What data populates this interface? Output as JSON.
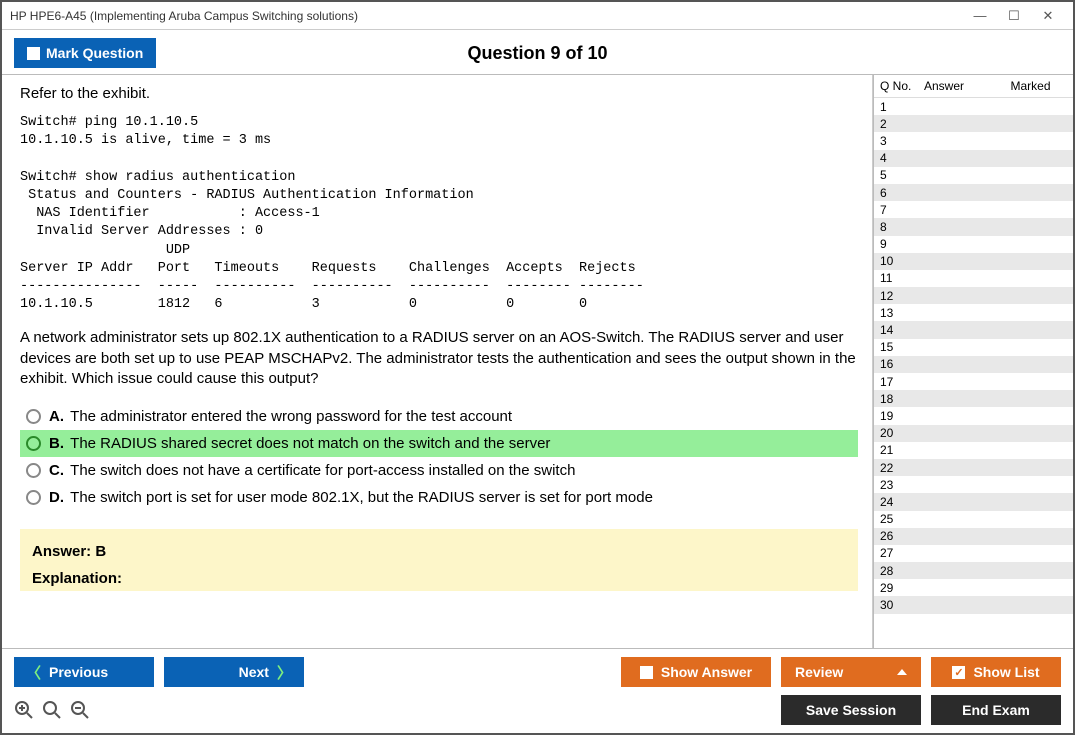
{
  "window": {
    "title": "HP HPE6-A45 (Implementing Aruba Campus Switching solutions)"
  },
  "header": {
    "mark_label": "Mark Question",
    "question_title": "Question 9 of 10"
  },
  "question": {
    "intro": "Refer to the exhibit.",
    "exhibit": "Switch# ping 10.1.10.5\n10.1.10.5 is alive, time = 3 ms\n\nSwitch# show radius authentication\n Status and Counters - RADIUS Authentication Information\n  NAS Identifier           : Access-1\n  Invalid Server Addresses : 0\n                  UDP\nServer IP Addr   Port   Timeouts    Requests    Challenges  Accepts  Rejects\n---------------  -----  ----------  ----------  ----------  -------- --------\n10.1.10.5        1812   6           3           0           0        0",
    "text": "A network administrator sets up 802.1X authentication to a RADIUS server on an AOS-Switch. The RADIUS server and user devices are both set up to use PEAP MSCHAPv2. The administrator tests the authentication and sees the output shown in the exhibit. Which issue could cause this output?",
    "options": [
      {
        "letter": "A.",
        "text": "The administrator entered the wrong password for the test account",
        "selected": false
      },
      {
        "letter": "B.",
        "text": "The RADIUS shared secret does not match on the switch and the server",
        "selected": true
      },
      {
        "letter": "C.",
        "text": "The switch does not have a certificate for port-access installed on the switch",
        "selected": false
      },
      {
        "letter": "D.",
        "text": "The switch port is set for user mode 802.1X, but the RADIUS server is set for port mode",
        "selected": false
      }
    ],
    "answer_label": "Answer: B",
    "explanation_label": "Explanation:"
  },
  "sidebar": {
    "col_qno": "Q No.",
    "col_answer": "Answer",
    "col_marked": "Marked",
    "count": 30
  },
  "footer": {
    "previous": "Previous",
    "next": "Next",
    "show_answer": "Show Answer",
    "review": "Review",
    "show_list": "Show List",
    "save_session": "Save Session",
    "end_exam": "End Exam"
  },
  "colors": {
    "blue": "#0a62b5",
    "orange": "#e06c1f",
    "dark": "#2b2b2b",
    "highlight": "#95ee9a",
    "answer_bg": "#fdf6c9"
  }
}
